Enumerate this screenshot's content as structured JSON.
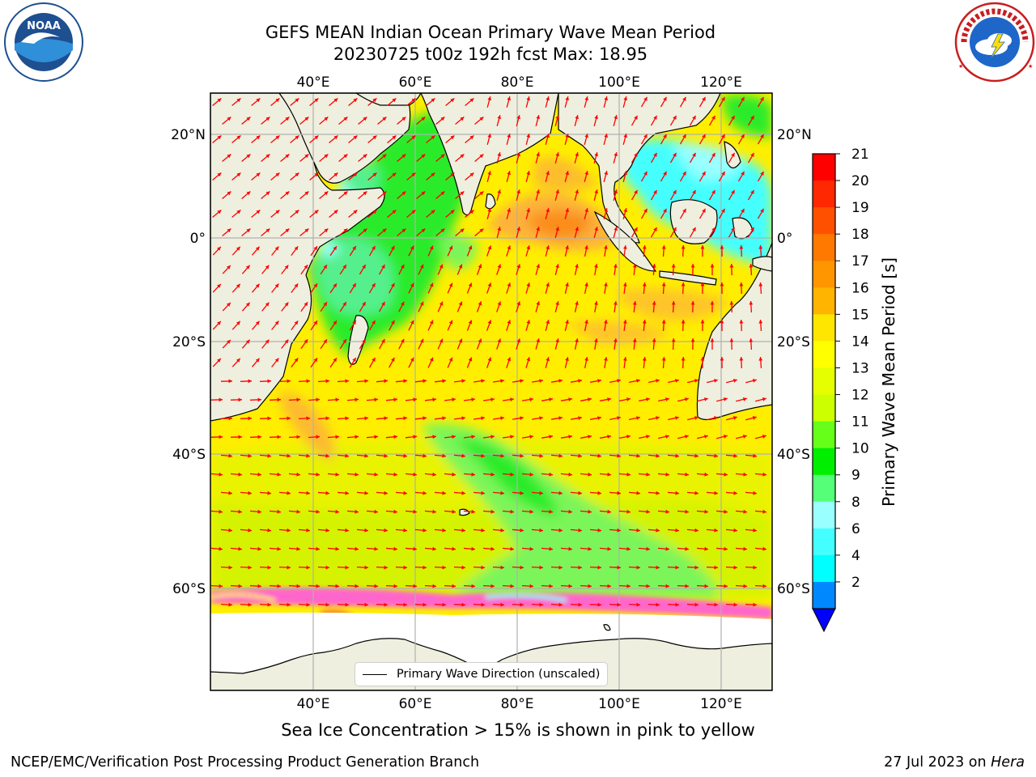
{
  "title": {
    "line1": "GEFS MEAN Indian Ocean Primary Wave Mean Period",
    "line2": "20230725 t00z 192h fcst   Max: 18.95"
  },
  "logos": {
    "left": "noaa-logo",
    "right": "nws-logo"
  },
  "map": {
    "projection": "plate-carree",
    "lon_range": [
      20,
      130
    ],
    "lat_range": [
      -73,
      27
    ],
    "top_axis_labels": [
      "40°E",
      "60°E",
      "80°E",
      "100°E",
      "120°E"
    ],
    "bottom_axis_labels": [
      "40°E",
      "60°E",
      "80°E",
      "100°E",
      "120°E"
    ],
    "left_axis_labels": [
      "20°N",
      "0°",
      "20°S",
      "40°S",
      "60°S"
    ],
    "right_axis_labels": [
      "20°N",
      "0°",
      "20°S",
      "40°S",
      "60°S"
    ],
    "gridlines": true,
    "legend": {
      "label": "Primary Wave Direction (unscaled)",
      "placement": "bottom-center"
    },
    "arrow_color": "#ff0000",
    "land_color": "#efefdf",
    "field_colors": {
      "yellow": "#ffee00",
      "yellow_green": "#e4f400",
      "light_green": "#7cf55a",
      "green": "#2aeb2a",
      "mint": "#55f08d",
      "cyan": "#44ffff",
      "orange": "#fdb23a",
      "dark_orange": "#fb8d1e",
      "sea_ice_pink": "#ff66cc"
    }
  },
  "colorbar": {
    "label": "Primary Wave Mean Period [s]",
    "ticks": [
      "21",
      "20",
      "19",
      "18",
      "17",
      "16",
      "15",
      "14",
      "13",
      "12",
      "11",
      "10",
      "9",
      "8",
      "6",
      "4",
      "2"
    ],
    "colors": [
      "#ff0000",
      "#ff2800",
      "#ff5000",
      "#ff7800",
      "#ff9600",
      "#ffb400",
      "#ffe600",
      "#ffff00",
      "#e6ff00",
      "#ccff00",
      "#66ff1a",
      "#00ee00",
      "#55ff77",
      "#99ffff",
      "#44ffff",
      "#00ffff",
      "#0088ff"
    ],
    "extend_min_color": "#0000ff",
    "range": [
      2,
      21
    ],
    "extend": "min"
  },
  "note": "Sea Ice Concentration > 15% is shown in pink to yellow",
  "footer": {
    "left": "NCEP/EMC/Verification Post Processing Product Generation Branch",
    "right_prefix": "27 Jul 2023 on ",
    "right_machine": "Hera"
  }
}
